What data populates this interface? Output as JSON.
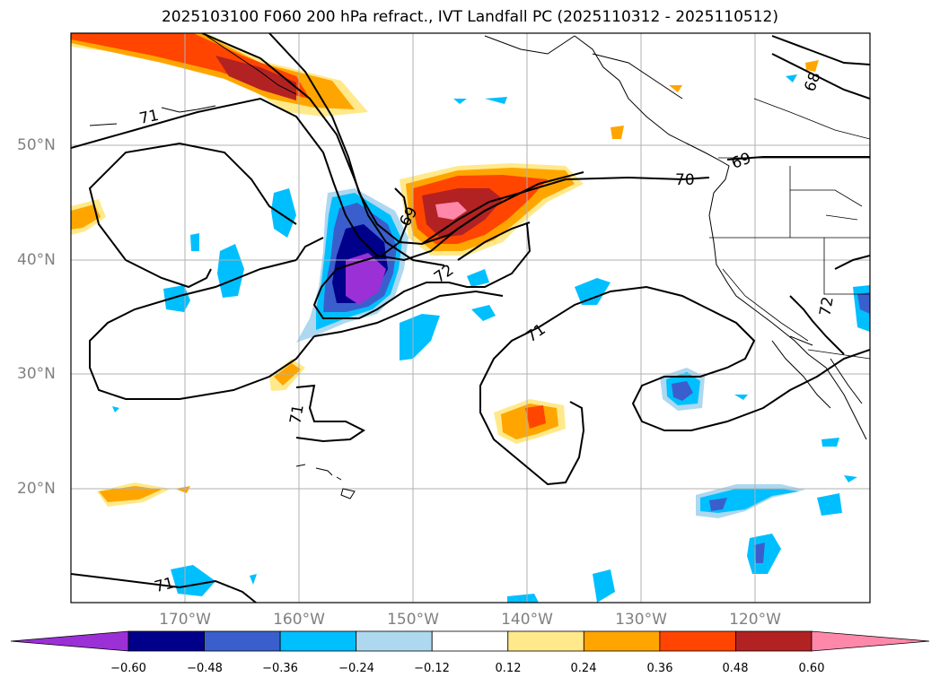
{
  "title": "2025103100 F060 200 hPa refract., IVT Landfall PC (2025110312 - 2025110512)",
  "lat_labels": [
    "50°N",
    "40°N",
    "30°N",
    "20°N"
  ],
  "lon_labels": [
    "170°W",
    "160°W",
    "150°W",
    "140°W",
    "130°W",
    "120°W"
  ],
  "contour_labels": [
    "71",
    "70",
    "69",
    "69",
    "68",
    "72",
    "71",
    "71",
    "72",
    "71"
  ],
  "colorbar": {
    "ticks": [
      "−0.60",
      "−0.48",
      "−0.36",
      "−0.24",
      "−0.12",
      "0.12",
      "0.24",
      "0.36",
      "0.48",
      "0.60"
    ],
    "colors": [
      "#9b30d6",
      "#00008b",
      "#3a5fcd",
      "#00bfff",
      "#add8f0",
      "#ffffff",
      "#ffe98a",
      "#ffa500",
      "#ff4500",
      "#b22222",
      "#ff88aa"
    ]
  }
}
